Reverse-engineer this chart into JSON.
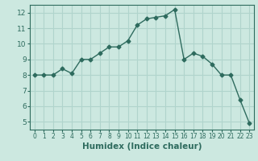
{
  "x": [
    0,
    1,
    2,
    3,
    4,
    5,
    6,
    7,
    8,
    9,
    10,
    11,
    12,
    13,
    14,
    15,
    16,
    17,
    18,
    19,
    20,
    21,
    22,
    23
  ],
  "y": [
    8.0,
    8.0,
    8.0,
    8.4,
    8.1,
    9.0,
    9.0,
    9.4,
    9.8,
    9.8,
    10.2,
    11.2,
    11.6,
    11.7,
    11.8,
    12.2,
    9.0,
    9.4,
    9.2,
    8.7,
    8.0,
    8.0,
    6.4,
    4.9
  ],
  "line_color": "#2e6b5e",
  "marker": "D",
  "marker_size": 2.5,
  "linewidth": 1.0,
  "xlabel": "Humidex (Indice chaleur)",
  "ylim": [
    4.5,
    12.5
  ],
  "xlim": [
    -0.5,
    23.5
  ],
  "yticks": [
    5,
    6,
    7,
    8,
    9,
    10,
    11,
    12
  ],
  "xticks": [
    0,
    1,
    2,
    3,
    4,
    5,
    6,
    7,
    8,
    9,
    10,
    11,
    12,
    13,
    14,
    15,
    16,
    17,
    18,
    19,
    20,
    21,
    22,
    23
  ],
  "bg_color": "#cce8e0",
  "grid_color": "#b0d4cc",
  "tick_color": "#2e6b5e",
  "label_color": "#2e6b5e",
  "xlabel_fontsize": 7.5,
  "tick_fontsize_x": 5.5,
  "tick_fontsize_y": 6.5
}
